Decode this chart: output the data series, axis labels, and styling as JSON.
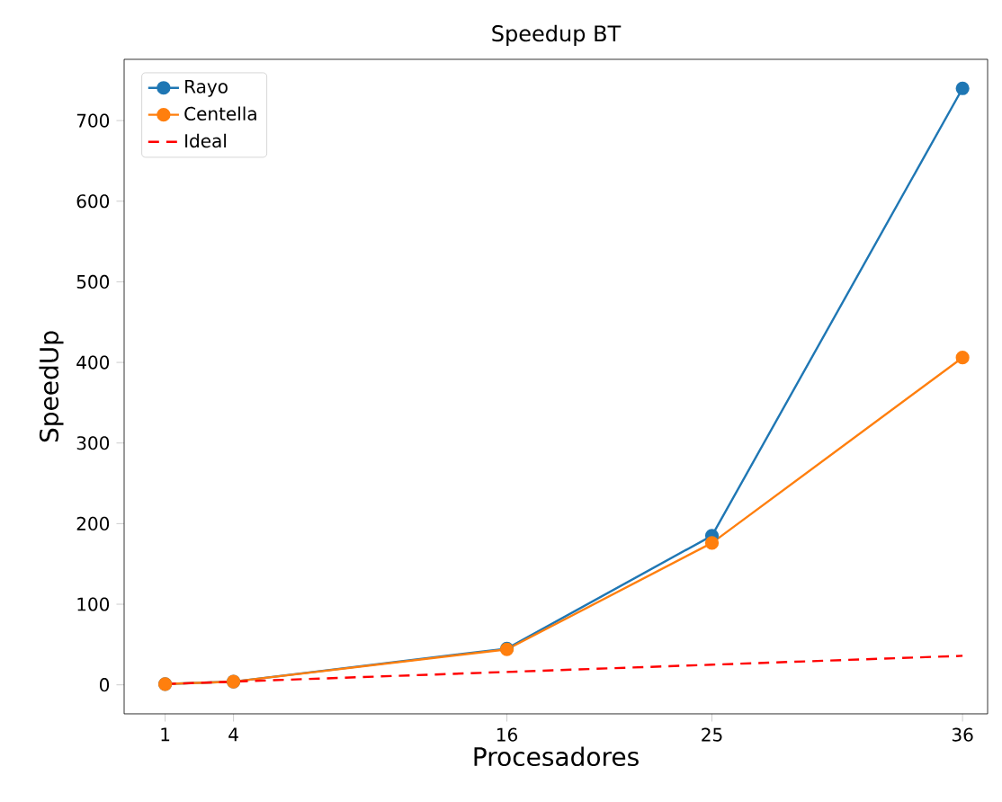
{
  "chart_data": {
    "type": "line",
    "title": "Speedup BT",
    "xlabel": "Procesadores",
    "ylabel": "SpeedUp",
    "x": [
      1,
      4,
      16,
      25,
      36
    ],
    "series": [
      {
        "name": "Rayo",
        "color": "#1f77b4",
        "values": [
          1,
          4,
          45,
          185,
          740
        ],
        "marker": "circle",
        "line_style": "solid"
      },
      {
        "name": "Centella",
        "color": "#ff7f0e",
        "values": [
          1,
          4,
          44,
          176,
          406
        ],
        "marker": "circle",
        "line_style": "solid"
      },
      {
        "name": "Ideal",
        "color": "#ff0000",
        "values": [
          1,
          4,
          16,
          25,
          36
        ],
        "marker": "none",
        "line_style": "dashed"
      }
    ],
    "xlim": [
      -0.8,
      37.1
    ],
    "ylim": [
      -36,
      776
    ],
    "xticks": [
      1,
      4,
      16,
      25,
      36
    ],
    "yticks": [
      0,
      100,
      200,
      300,
      400,
      500,
      600,
      700
    ],
    "grid": false,
    "legend": "top left"
  }
}
